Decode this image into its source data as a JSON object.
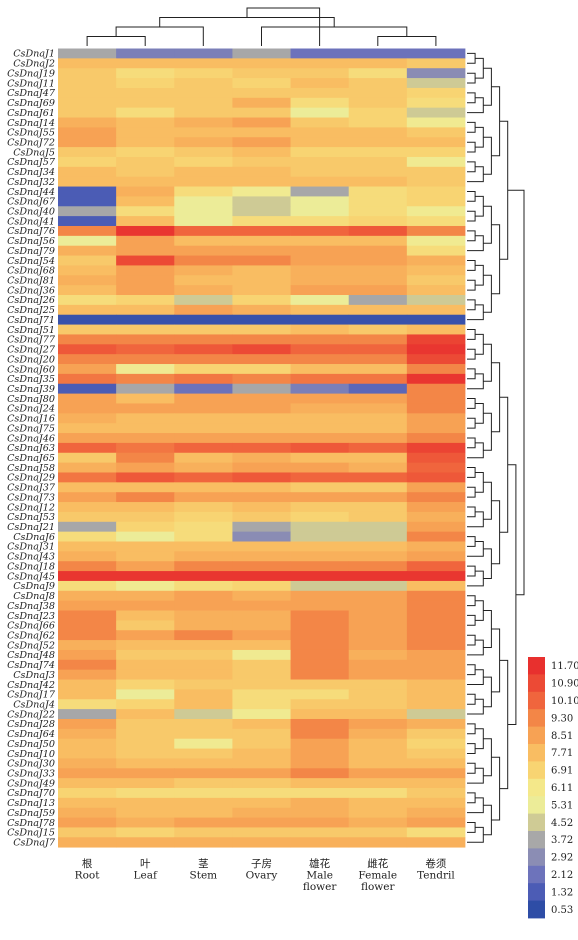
{
  "chart_data": {
    "type": "heatmap",
    "title": "",
    "xlabel": "",
    "ylabel": "",
    "columns": [
      {
        "zh": "根",
        "en": "Root"
      },
      {
        "zh": "叶",
        "en": "Leaf"
      },
      {
        "zh": "茎",
        "en": "Stem"
      },
      {
        "zh": "子房",
        "en": "Ovary"
      },
      {
        "zh": "雄花",
        "en": "Male flower"
      },
      {
        "zh": "雌花",
        "en": "Female flower"
      },
      {
        "zh": "卷须",
        "en": "Tendril"
      }
    ],
    "rows": [
      "CsDnaJ1",
      "CsDnaJ2",
      "CsDnaJ19",
      "CsDnaJ11",
      "CsDnaJ47",
      "CsDnaJ69",
      "CsDnaJ61",
      "CsDnaJ14",
      "CsDnaJ55",
      "CsDnaJ72",
      "CsDnaJ5",
      "CsDnaJ57",
      "CsDnaJ34",
      "CsDnaJ32",
      "CsDnaJ44",
      "CsDnaJ67",
      "CsDnaJ40",
      "CsDnaJ41",
      "CsDnaJ76",
      "CsDnaJ56",
      "CsDnaJ79",
      "CsDnaJ54",
      "CsDnaJ68",
      "CsDnaJ81",
      "CsDnaJ36",
      "CsDnaJ26",
      "CsDnaJ25",
      "CsDnaJ71",
      "CsDnaJ51",
      "CsDnaJ77",
      "CsDnaJ27",
      "CsDnaJ20",
      "CsDnaJ60",
      "CsDnaJ35",
      "CsDnaJ39",
      "CsDnaJ80",
      "CsDnaJ24",
      "CsDnaJ16",
      "CsDnaJ75",
      "CsDnaJ46",
      "CsDnaJ63",
      "CsDnaJ65",
      "CsDnaJ58",
      "CsDnaJ29",
      "CsDnaJ37",
      "CsDnaJ73",
      "CsDnaJ12",
      "CsDnaJ53",
      "CsDnaJ21",
      "CsDnaJ6",
      "CsDnaJ31",
      "CsDnaJ43",
      "CsDnaJ18",
      "CsDnaJ45",
      "CsDnaJ9",
      "CsDnaJ8",
      "CsDnaJ38",
      "CsDnaJ23",
      "CsDnaJ66",
      "CsDnaJ62",
      "CsDnaJ52",
      "CsDnaJ48",
      "CsDnaJ74",
      "CsDnaJ3",
      "CsDnaJ42",
      "CsDnaJ17",
      "CsDnaJ4",
      "CsDnaJ22",
      "CsDnaJ28",
      "CsDnaJ64",
      "CsDnaJ50",
      "CsDnaJ10",
      "CsDnaJ30",
      "CsDnaJ33",
      "CsDnaJ49",
      "CsDnaJ70",
      "CsDnaJ13",
      "CsDnaJ59",
      "CsDnaJ78",
      "CsDnaJ15",
      "CsDnaJ7"
    ],
    "values": [
      [
        3.7,
        2.5,
        2.5,
        3.7,
        2.1,
        2.1,
        2.1
      ],
      [
        7.7,
        7.7,
        7.7,
        7.7,
        7.7,
        7.7,
        7.3
      ],
      [
        7.3,
        6.6,
        6.9,
        7.3,
        7.3,
        6.6,
        2.9
      ],
      [
        7.3,
        6.9,
        7.3,
        6.9,
        7.7,
        7.3,
        4.5
      ],
      [
        7.3,
        7.3,
        7.3,
        7.3,
        7.3,
        7.3,
        6.9
      ],
      [
        7.3,
        7.3,
        7.3,
        8.1,
        6.6,
        7.3,
        6.6
      ],
      [
        7.3,
        6.6,
        7.3,
        7.3,
        5.3,
        6.9,
        4.5
      ],
      [
        8.1,
        7.7,
        8.1,
        8.5,
        7.3,
        6.9,
        5.7
      ],
      [
        8.5,
        7.7,
        7.7,
        7.7,
        7.7,
        7.7,
        7.3
      ],
      [
        8.5,
        7.7,
        8.1,
        8.5,
        7.7,
        7.7,
        7.7
      ],
      [
        7.3,
        6.9,
        7.3,
        7.7,
        6.9,
        6.9,
        6.9
      ],
      [
        6.9,
        7.3,
        6.9,
        7.3,
        7.3,
        7.3,
        5.7
      ],
      [
        7.7,
        7.3,
        7.7,
        7.7,
        7.3,
        7.3,
        7.3
      ],
      [
        7.7,
        7.7,
        7.7,
        7.7,
        7.7,
        7.7,
        7.3
      ],
      [
        1.3,
        8.1,
        6.6,
        5.7,
        3.7,
        6.6,
        6.9
      ],
      [
        1.3,
        7.7,
        5.3,
        4.5,
        5.3,
        6.6,
        6.9
      ],
      [
        3.7,
        6.6,
        5.3,
        4.5,
        5.3,
        6.6,
        5.7
      ],
      [
        1.3,
        7.7,
        5.3,
        6.6,
        6.6,
        6.9,
        6.6
      ],
      [
        9.3,
        11.5,
        10.1,
        10.1,
        10.1,
        10.5,
        9.3
      ],
      [
        5.3,
        8.5,
        7.7,
        7.7,
        7.7,
        7.7,
        5.7
      ],
      [
        8.1,
        8.5,
        8.5,
        8.5,
        8.5,
        8.5,
        6.6
      ],
      [
        7.3,
        10.9,
        9.3,
        9.3,
        8.5,
        8.5,
        8.1
      ],
      [
        7.7,
        8.5,
        8.1,
        7.7,
        8.1,
        8.1,
        7.7
      ],
      [
        8.1,
        8.5,
        7.7,
        7.7,
        8.1,
        8.1,
        7.3
      ],
      [
        7.7,
        8.5,
        8.1,
        7.7,
        8.5,
        8.5,
        7.7
      ],
      [
        6.6,
        6.9,
        4.5,
        6.9,
        5.3,
        3.7,
        4.5
      ],
      [
        7.7,
        7.7,
        8.5,
        8.1,
        7.7,
        7.7,
        7.7
      ],
      [
        0.8,
        0.8,
        0.8,
        0.8,
        0.8,
        0.8,
        0.8
      ],
      [
        7.3,
        7.3,
        7.3,
        7.3,
        7.7,
        7.3,
        7.7
      ],
      [
        9.3,
        9.3,
        9.3,
        9.3,
        9.3,
        9.3,
        11.1
      ],
      [
        10.5,
        10.1,
        10.5,
        10.9,
        10.1,
        10.1,
        11.5
      ],
      [
        9.3,
        9.3,
        9.3,
        9.3,
        9.3,
        9.3,
        10.9
      ],
      [
        8.5,
        5.7,
        6.9,
        6.9,
        7.7,
        7.7,
        9.3
      ],
      [
        9.7,
        9.3,
        9.7,
        9.3,
        9.7,
        9.7,
        11.5
      ],
      [
        1.3,
        3.7,
        2.1,
        3.7,
        2.5,
        1.7,
        9.3
      ],
      [
        8.5,
        7.7,
        8.5,
        8.5,
        8.5,
        8.5,
        9.3
      ],
      [
        8.5,
        8.5,
        8.5,
        8.5,
        8.1,
        8.1,
        9.3
      ],
      [
        8.1,
        7.7,
        7.7,
        7.7,
        7.7,
        7.7,
        8.5
      ],
      [
        7.7,
        7.7,
        7.7,
        7.7,
        7.7,
        7.7,
        8.5
      ],
      [
        8.5,
        8.5,
        8.5,
        8.5,
        8.5,
        8.5,
        9.3
      ],
      [
        10.1,
        9.7,
        10.1,
        10.1,
        10.5,
        10.1,
        11.1
      ],
      [
        7.3,
        9.3,
        7.7,
        8.1,
        7.7,
        7.7,
        10.5
      ],
      [
        8.1,
        8.5,
        8.1,
        8.5,
        8.5,
        8.1,
        10.1
      ],
      [
        9.7,
        10.5,
        10.1,
        10.5,
        10.1,
        10.1,
        10.5
      ],
      [
        7.7,
        7.7,
        7.7,
        7.7,
        7.3,
        7.3,
        8.5
      ],
      [
        8.5,
        9.3,
        8.5,
        8.5,
        8.5,
        8.5,
        9.3
      ],
      [
        7.7,
        7.7,
        7.3,
        7.7,
        7.3,
        7.3,
        8.5
      ],
      [
        7.3,
        7.3,
        6.9,
        7.3,
        6.9,
        7.3,
        8.1
      ],
      [
        3.7,
        6.9,
        6.6,
        3.7,
        4.5,
        4.5,
        8.5
      ],
      [
        6.6,
        5.3,
        6.6,
        2.9,
        4.5,
        4.5,
        9.3
      ],
      [
        7.7,
        7.7,
        7.7,
        7.7,
        7.7,
        7.7,
        8.1
      ],
      [
        8.1,
        7.7,
        8.1,
        8.1,
        8.1,
        8.1,
        8.5
      ],
      [
        9.3,
        8.5,
        9.3,
        9.3,
        9.3,
        9.3,
        10.1
      ],
      [
        11.5,
        11.5,
        11.5,
        11.5,
        11.5,
        11.5,
        11.5
      ],
      [
        6.6,
        5.7,
        6.6,
        6.9,
        4.5,
        4.5,
        7.7
      ],
      [
        8.1,
        8.1,
        8.5,
        8.1,
        8.5,
        8.5,
        9.3
      ],
      [
        8.5,
        8.5,
        8.5,
        8.5,
        8.5,
        8.5,
        9.3
      ],
      [
        9.3,
        7.7,
        8.1,
        8.1,
        9.3,
        8.5,
        9.3
      ],
      [
        9.3,
        7.3,
        8.1,
        8.1,
        9.3,
        8.5,
        9.3
      ],
      [
        9.3,
        8.5,
        9.3,
        8.5,
        9.3,
        8.5,
        9.3
      ],
      [
        8.1,
        7.7,
        7.7,
        7.7,
        9.3,
        8.5,
        9.3
      ],
      [
        8.5,
        7.3,
        7.3,
        5.7,
        9.3,
        8.1,
        8.5
      ],
      [
        9.3,
        7.7,
        7.7,
        7.3,
        9.3,
        8.5,
        8.5
      ],
      [
        8.5,
        7.7,
        7.7,
        7.3,
        9.3,
        8.5,
        8.5
      ],
      [
        7.7,
        6.9,
        7.3,
        7.3,
        7.3,
        7.3,
        7.7
      ],
      [
        7.7,
        5.3,
        7.7,
        6.6,
        6.6,
        7.3,
        7.7
      ],
      [
        6.6,
        6.9,
        7.7,
        6.6,
        7.3,
        7.3,
        7.7
      ],
      [
        3.7,
        7.7,
        4.5,
        5.7,
        7.7,
        7.7,
        4.5
      ],
      [
        8.5,
        7.3,
        7.3,
        7.7,
        9.3,
        8.5,
        8.1
      ],
      [
        8.1,
        7.3,
        7.3,
        7.3,
        9.3,
        8.1,
        7.3
      ],
      [
        7.7,
        7.3,
        5.7,
        7.3,
        8.5,
        7.7,
        6.9
      ],
      [
        7.7,
        7.3,
        7.3,
        7.7,
        8.5,
        7.7,
        7.3
      ],
      [
        8.1,
        7.7,
        7.7,
        7.7,
        8.5,
        7.7,
        7.7
      ],
      [
        8.5,
        8.5,
        8.5,
        8.5,
        9.3,
        8.5,
        8.5
      ],
      [
        7.7,
        7.7,
        7.3,
        7.3,
        7.7,
        7.7,
        7.7
      ],
      [
        6.9,
        6.6,
        6.6,
        6.6,
        6.6,
        6.6,
        7.3
      ],
      [
        7.7,
        7.7,
        7.7,
        7.7,
        8.1,
        7.7,
        7.7
      ],
      [
        8.1,
        7.7,
        7.7,
        8.1,
        8.1,
        7.7,
        8.1
      ],
      [
        8.5,
        8.1,
        8.5,
        8.5,
        8.5,
        8.1,
        8.5
      ],
      [
        7.3,
        6.9,
        7.3,
        7.3,
        7.3,
        7.3,
        6.6
      ],
      [
        8.1,
        8.1,
        8.1,
        8.1,
        8.1,
        8.1,
        8.1
      ]
    ],
    "legend": {
      "ticks": [
        "11.70",
        "10.90",
        "10.10",
        "9.30",
        "8.51",
        "7.71",
        "6.91",
        "6.11",
        "5.31",
        "4.52",
        "3.72",
        "2.92",
        "2.12",
        "1.32",
        "0.53"
      ],
      "colors": [
        "#e8302e",
        "#ec4a35",
        "#f0653d",
        "#f38647",
        "#f7a254",
        "#f9bd62",
        "#f8d472",
        "#f4e88a",
        "#ecec98",
        "#cfcb95",
        "#a8a8a8",
        "#8b8db4",
        "#6d73bb",
        "#4c5cb5",
        "#2e4da6"
      ]
    },
    "grid": false,
    "legend_position": "right"
  }
}
